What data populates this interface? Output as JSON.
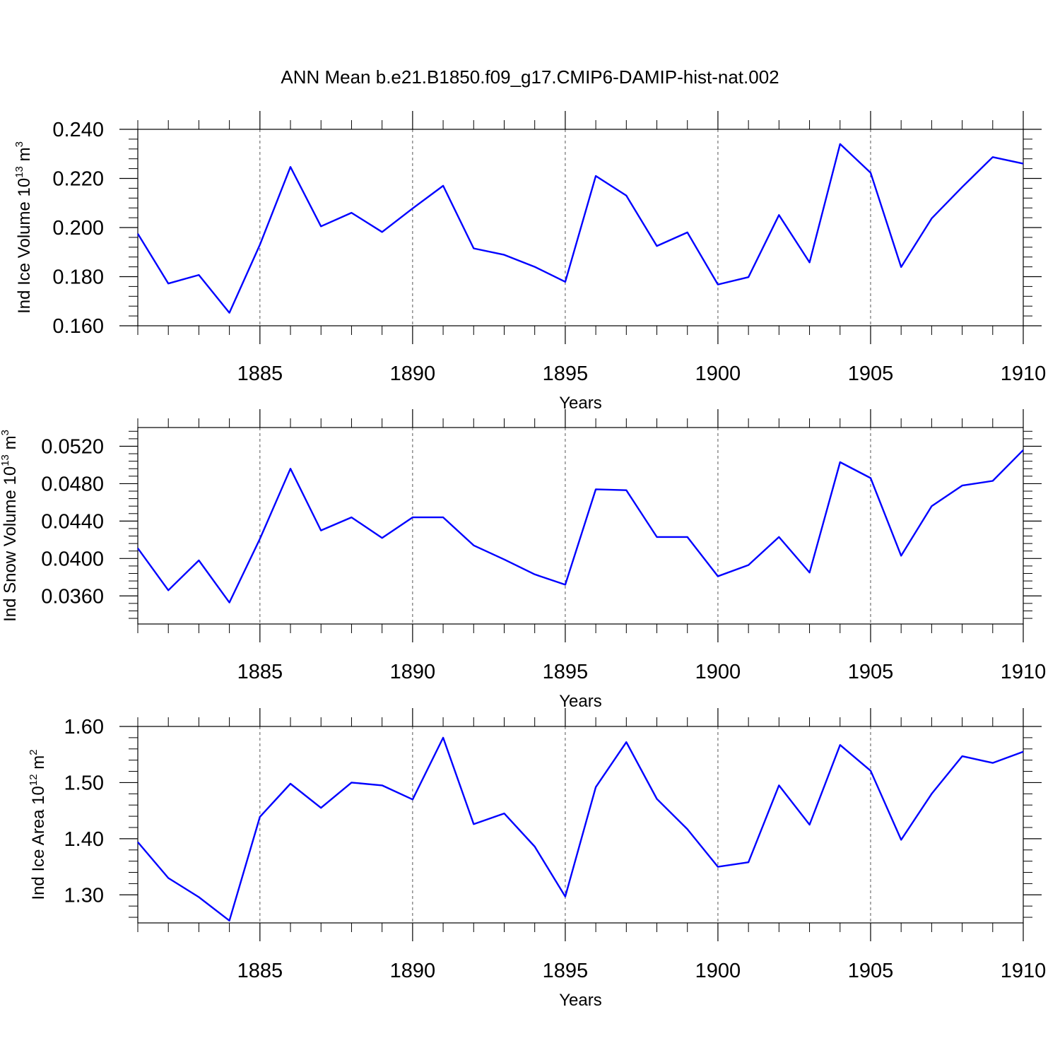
{
  "title": "ANN Mean b.e21.B1850.f09_g17.CMIP6-DAMIP-hist-nat.002",
  "colors": {
    "line": "#0000ff",
    "axes": "#000000"
  },
  "chart_data": [
    {
      "type": "line",
      "name": "ice-volume",
      "ylabel": "Ind Ice Volume 10",
      "ylabel_exp": "13",
      "ylabel_unit": " m",
      "ylabel_unit_exp": "3",
      "xlabel": "Years",
      "xlim": [
        1881,
        1910
      ],
      "ylim": [
        0.16,
        0.24
      ],
      "x_major_ticks": [
        1885,
        1890,
        1895,
        1900,
        1905,
        1910
      ],
      "x_tick_labels": [
        "1885",
        "1890",
        "1895",
        "1900",
        "1905",
        "1910"
      ],
      "x_minor_ticks": [
        1881,
        1882,
        1883,
        1884,
        1886,
        1887,
        1888,
        1889,
        1891,
        1892,
        1893,
        1894,
        1896,
        1897,
        1898,
        1899,
        1901,
        1902,
        1903,
        1904,
        1906,
        1907,
        1908,
        1909
      ],
      "y_major_ticks": [
        0.16,
        0.18,
        0.2,
        0.22,
        0.24
      ],
      "y_tick_labels": [
        "0.160",
        "0.180",
        "0.200",
        "0.220",
        "0.240"
      ],
      "y_minor_ticks": [
        0.164,
        0.168,
        0.172,
        0.176,
        0.184,
        0.188,
        0.192,
        0.196,
        0.204,
        0.208,
        0.212,
        0.216,
        0.224,
        0.228,
        0.232,
        0.236
      ],
      "grid": "vertical dashed at major x ticks",
      "x": [
        1881,
        1882,
        1883,
        1884,
        1885,
        1886,
        1887,
        1888,
        1889,
        1890,
        1891,
        1892,
        1893,
        1894,
        1895,
        1896,
        1897,
        1898,
        1899,
        1900,
        1901,
        1902,
        1903,
        1904,
        1905,
        1906,
        1907,
        1908,
        1909,
        1910
      ],
      "values": [
        0.1975,
        0.1772,
        0.1807,
        0.1653,
        0.193,
        0.2247,
        0.2005,
        0.206,
        0.1982,
        0.2078,
        0.217,
        0.1915,
        0.1889,
        0.184,
        0.1779,
        0.221,
        0.213,
        0.1925,
        0.198,
        0.1768,
        0.1798,
        0.2051,
        0.1858,
        0.234,
        0.2223,
        0.1839,
        0.2037,
        0.2165,
        0.2287,
        0.226
      ]
    },
    {
      "type": "line",
      "name": "snow-volume",
      "ylabel": "Ind Snow Volume 10",
      "ylabel_exp": "13",
      "ylabel_unit": " m",
      "ylabel_unit_exp": "3",
      "xlabel": "Years",
      "xlim": [
        1881,
        1910
      ],
      "ylim": [
        0.033,
        0.054
      ],
      "x_major_ticks": [
        1885,
        1890,
        1895,
        1900,
        1905,
        1910
      ],
      "x_tick_labels": [
        "1885",
        "1890",
        "1895",
        "1900",
        "1905",
        "1910"
      ],
      "x_minor_ticks": [
        1881,
        1882,
        1883,
        1884,
        1886,
        1887,
        1888,
        1889,
        1891,
        1892,
        1893,
        1894,
        1896,
        1897,
        1898,
        1899,
        1901,
        1902,
        1903,
        1904,
        1906,
        1907,
        1908,
        1909
      ],
      "y_major_ticks": [
        0.036,
        0.04,
        0.044,
        0.048,
        0.052
      ],
      "y_tick_labels": [
        "0.0360",
        "0.0400",
        "0.0440",
        "0.0480",
        "0.0520"
      ],
      "y_minor_ticks": [
        0.0336,
        0.0344,
        0.0352,
        0.0368,
        0.0376,
        0.0384,
        0.0392,
        0.0408,
        0.0416,
        0.0424,
        0.0432,
        0.0448,
        0.0456,
        0.0464,
        0.0472,
        0.0488,
        0.0496,
        0.0504,
        0.0512,
        0.0528,
        0.0536
      ],
      "grid": "vertical dashed at major x ticks",
      "x": [
        1881,
        1882,
        1883,
        1884,
        1885,
        1886,
        1887,
        1888,
        1889,
        1890,
        1891,
        1892,
        1893,
        1894,
        1895,
        1896,
        1897,
        1898,
        1899,
        1900,
        1901,
        1902,
        1903,
        1904,
        1905,
        1906,
        1907,
        1908,
        1909,
        1910
      ],
      "values": [
        0.0411,
        0.0366,
        0.0398,
        0.0353,
        0.0421,
        0.0496,
        0.043,
        0.0444,
        0.0422,
        0.0444,
        0.0444,
        0.0414,
        0.0399,
        0.0383,
        0.0372,
        0.0474,
        0.0473,
        0.0423,
        0.0423,
        0.0381,
        0.0393,
        0.0423,
        0.0385,
        0.0503,
        0.0486,
        0.0403,
        0.0456,
        0.0478,
        0.0483,
        0.0516
      ]
    },
    {
      "type": "line",
      "name": "ice-area",
      "ylabel": "Ind Ice Area 10",
      "ylabel_exp": "12",
      "ylabel_unit": " m",
      "ylabel_unit_exp": "2",
      "xlabel": "Years",
      "xlim": [
        1881,
        1910
      ],
      "ylim": [
        1.25,
        1.6
      ],
      "x_major_ticks": [
        1885,
        1890,
        1895,
        1900,
        1905,
        1910
      ],
      "x_tick_labels": [
        "1885",
        "1890",
        "1895",
        "1900",
        "1905",
        "1910"
      ],
      "x_minor_ticks": [
        1881,
        1882,
        1883,
        1884,
        1886,
        1887,
        1888,
        1889,
        1891,
        1892,
        1893,
        1894,
        1896,
        1897,
        1898,
        1899,
        1901,
        1902,
        1903,
        1904,
        1906,
        1907,
        1908,
        1909
      ],
      "y_major_ticks": [
        1.3,
        1.4,
        1.5,
        1.6
      ],
      "y_tick_labels": [
        "1.30",
        "1.40",
        "1.50",
        "1.60"
      ],
      "y_minor_ticks": [
        1.26,
        1.28,
        1.32,
        1.34,
        1.36,
        1.38,
        1.42,
        1.44,
        1.46,
        1.48,
        1.52,
        1.54,
        1.56,
        1.58
      ],
      "grid": "vertical dashed at major x ticks",
      "x": [
        1881,
        1882,
        1883,
        1884,
        1885,
        1886,
        1887,
        1888,
        1889,
        1890,
        1891,
        1892,
        1893,
        1894,
        1895,
        1896,
        1897,
        1898,
        1899,
        1900,
        1901,
        1902,
        1903,
        1904,
        1905,
        1906,
        1907,
        1908,
        1909,
        1910
      ],
      "values": [
        1.394,
        1.33,
        1.296,
        1.254,
        1.439,
        1.498,
        1.455,
        1.5,
        1.495,
        1.47,
        1.58,
        1.426,
        1.445,
        1.386,
        1.297,
        1.492,
        1.572,
        1.471,
        1.417,
        1.35,
        1.358,
        1.495,
        1.425,
        1.567,
        1.521,
        1.398,
        1.48,
        1.547,
        1.535,
        1.555
      ]
    }
  ]
}
